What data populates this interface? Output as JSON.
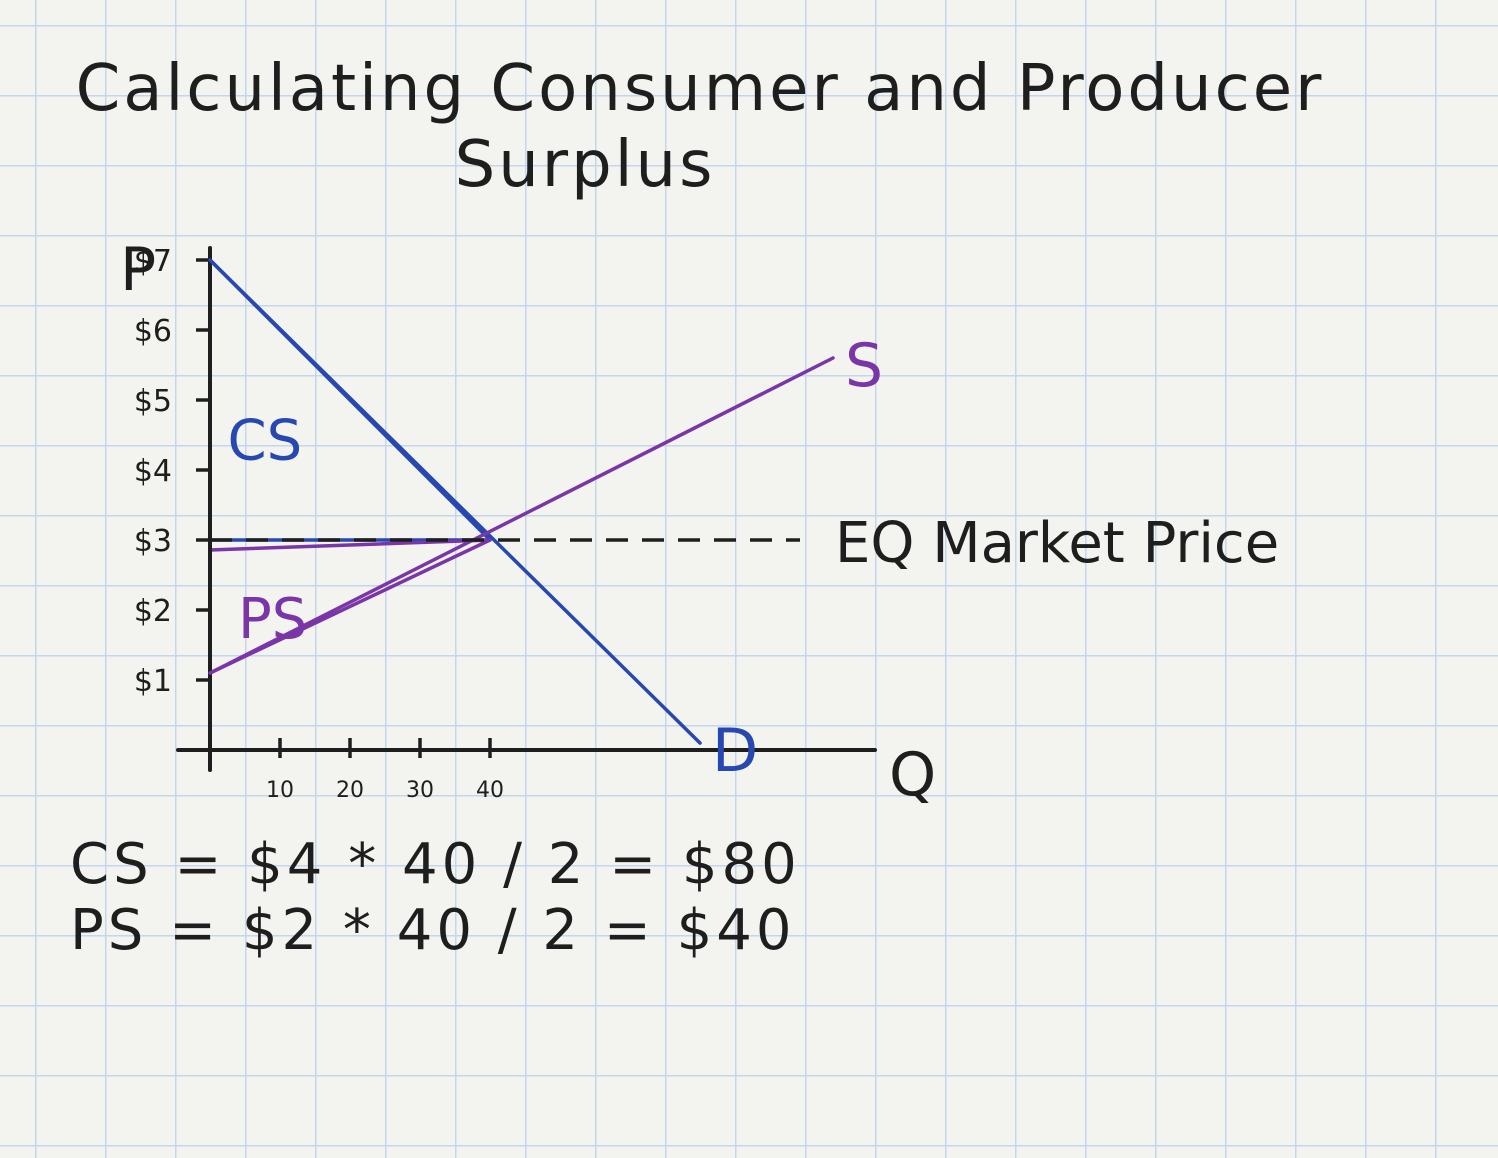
{
  "title_line1": "Calculating Consumer and Producer",
  "title_line2": "Surplus",
  "colors": {
    "ink": "#1e1e1e",
    "demand": "#2748b0",
    "supply": "#7a35a8"
  },
  "chart_data": {
    "type": "line",
    "xlabel": "Q",
    "ylabel": "P",
    "x_ticks": [
      10,
      20,
      30,
      40
    ],
    "x_tick_labels": [
      "10",
      "20",
      "30",
      "40"
    ],
    "y_ticks": [
      1,
      2,
      3,
      4,
      5,
      6,
      7
    ],
    "y_tick_labels": [
      "$1",
      "$2",
      "$3",
      "$4",
      "$5",
      "$6",
      "$7"
    ],
    "series": [
      {
        "name": "D",
        "color": "#2748b0",
        "points": [
          [
            0,
            7
          ],
          [
            70,
            0.1
          ]
        ]
      },
      {
        "name": "S",
        "color": "#7a35a8",
        "points": [
          [
            0,
            1.1
          ],
          [
            89,
            5.6
          ]
        ]
      }
    ],
    "annotations": {
      "equilibrium_label": "EQ Market Price",
      "equilibrium": {
        "q": 40,
        "p": 3
      },
      "cs_label": "CS",
      "ps_label": "PS"
    }
  },
  "equations": {
    "cs": "CS = $4 * 40 / 2 = $80",
    "ps": "PS = $2 * 40 / 2 = $40"
  }
}
